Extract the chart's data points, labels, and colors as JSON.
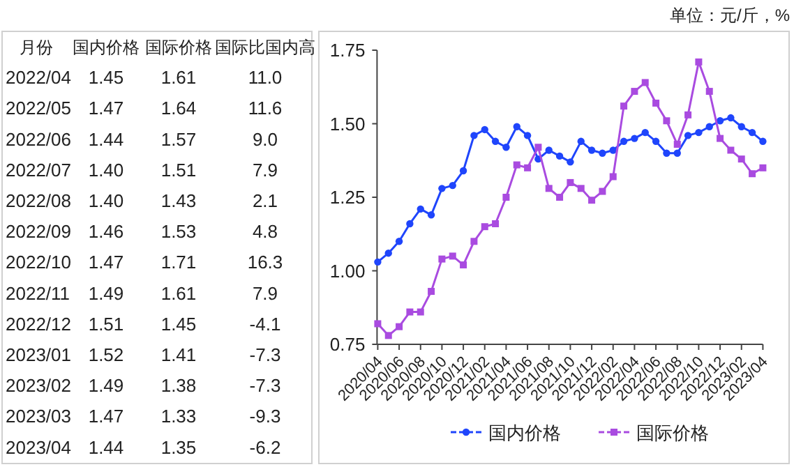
{
  "chart_data": [
    {
      "type": "other",
      "xlabel": "月份",
      "categories": [
        "2022/04",
        "2022/05",
        "2022/06",
        "2022/07",
        "2022/08",
        "2022/09",
        "2022/10",
        "2022/11",
        "2022/12",
        "2023/01",
        "2023/02",
        "2023/03",
        "2023/04"
      ],
      "series": [
        {
          "name": "国内价格",
          "values": [
            1.45,
            1.47,
            1.44,
            1.4,
            1.4,
            1.46,
            1.47,
            1.49,
            1.51,
            1.52,
            1.49,
            1.47,
            1.44
          ],
          "value_labels": [
            "1.45",
            "1.47",
            "1.44",
            "1.40",
            "1.40",
            "1.46",
            "1.47",
            "1.49",
            "1.51",
            "1.52",
            "1.49",
            "1.47",
            "1.44"
          ]
        },
        {
          "name": "国际价格",
          "values": [
            1.61,
            1.64,
            1.57,
            1.51,
            1.43,
            1.53,
            1.71,
            1.61,
            1.45,
            1.41,
            1.38,
            1.33,
            1.35
          ],
          "value_labels": [
            "1.61",
            "1.64",
            "1.57",
            "1.51",
            "1.43",
            "1.53",
            "1.71",
            "1.61",
            "1.45",
            "1.41",
            "1.38",
            "1.33",
            "1.35"
          ]
        },
        {
          "name": "国际比国内高",
          "values": [
            11.0,
            11.6,
            9.0,
            7.9,
            2.1,
            4.8,
            16.3,
            7.9,
            -4.1,
            -7.3,
            -7.3,
            -9.3,
            -6.2
          ],
          "value_labels": [
            "11.0",
            "11.6",
            "9.0",
            "7.9",
            "2.1",
            "4.8",
            "16.3",
            "7.9",
            "-4.1",
            "-7.3",
            "-7.3",
            "-9.3",
            "-6.2"
          ]
        }
      ],
      "data_labels": true
    },
    {
      "type": "line",
      "annotations": [
        "单位：元/斤，%"
      ],
      "categories": [
        "2020/04",
        null,
        "2020/06",
        null,
        "2020/08",
        null,
        "2020/10",
        null,
        "2020/12",
        null,
        "2021/02",
        null,
        "2021/04",
        null,
        "2021/06",
        null,
        "2021/08",
        null,
        "2021/10",
        null,
        "2021/12",
        null,
        "2022/02",
        null,
        "2022/04",
        null,
        "2022/06",
        null,
        "2022/08",
        null,
        "2022/10",
        null,
        "2022/12",
        null,
        "2023/02",
        null,
        "2023/04"
      ],
      "series": [
        {
          "name": "国内价格",
          "color": "#1f45fc",
          "marker": "circle",
          "values": [
            1.03,
            1.06,
            1.1,
            1.16,
            1.21,
            1.19,
            1.28,
            1.29,
            1.34,
            1.46,
            1.48,
            1.44,
            1.42,
            1.49,
            1.46,
            1.38,
            1.41,
            1.39,
            1.37,
            1.44,
            1.41,
            1.4,
            1.41,
            1.44,
            1.45,
            1.47,
            1.44,
            1.4,
            1.4,
            1.46,
            1.47,
            1.49,
            1.51,
            1.52,
            1.49,
            1.47,
            1.44
          ]
        },
        {
          "name": "国际价格",
          "color": "#a94be0",
          "marker": "square",
          "values": [
            0.82,
            0.78,
            0.81,
            0.86,
            0.86,
            0.93,
            1.04,
            1.05,
            1.02,
            1.1,
            1.15,
            1.16,
            1.25,
            1.36,
            1.35,
            1.42,
            1.28,
            1.25,
            1.3,
            1.28,
            1.24,
            1.27,
            1.32,
            1.56,
            1.61,
            1.64,
            1.57,
            1.51,
            1.43,
            1.53,
            1.71,
            1.61,
            1.45,
            1.41,
            1.38,
            1.33,
            1.35
          ]
        }
      ],
      "ylim": [
        0.75,
        1.75
      ],
      "yticks": [
        {
          "value": 0.75,
          "label": "0.75"
        },
        {
          "value": 1.0,
          "label": "1.00"
        },
        {
          "value": 1.25,
          "label": "1.25"
        },
        {
          "value": 1.5,
          "label": "1.50"
        },
        {
          "value": 1.75,
          "label": "1.75"
        }
      ],
      "grid": false,
      "legend": "bottom",
      "line_style": "solid"
    }
  ]
}
